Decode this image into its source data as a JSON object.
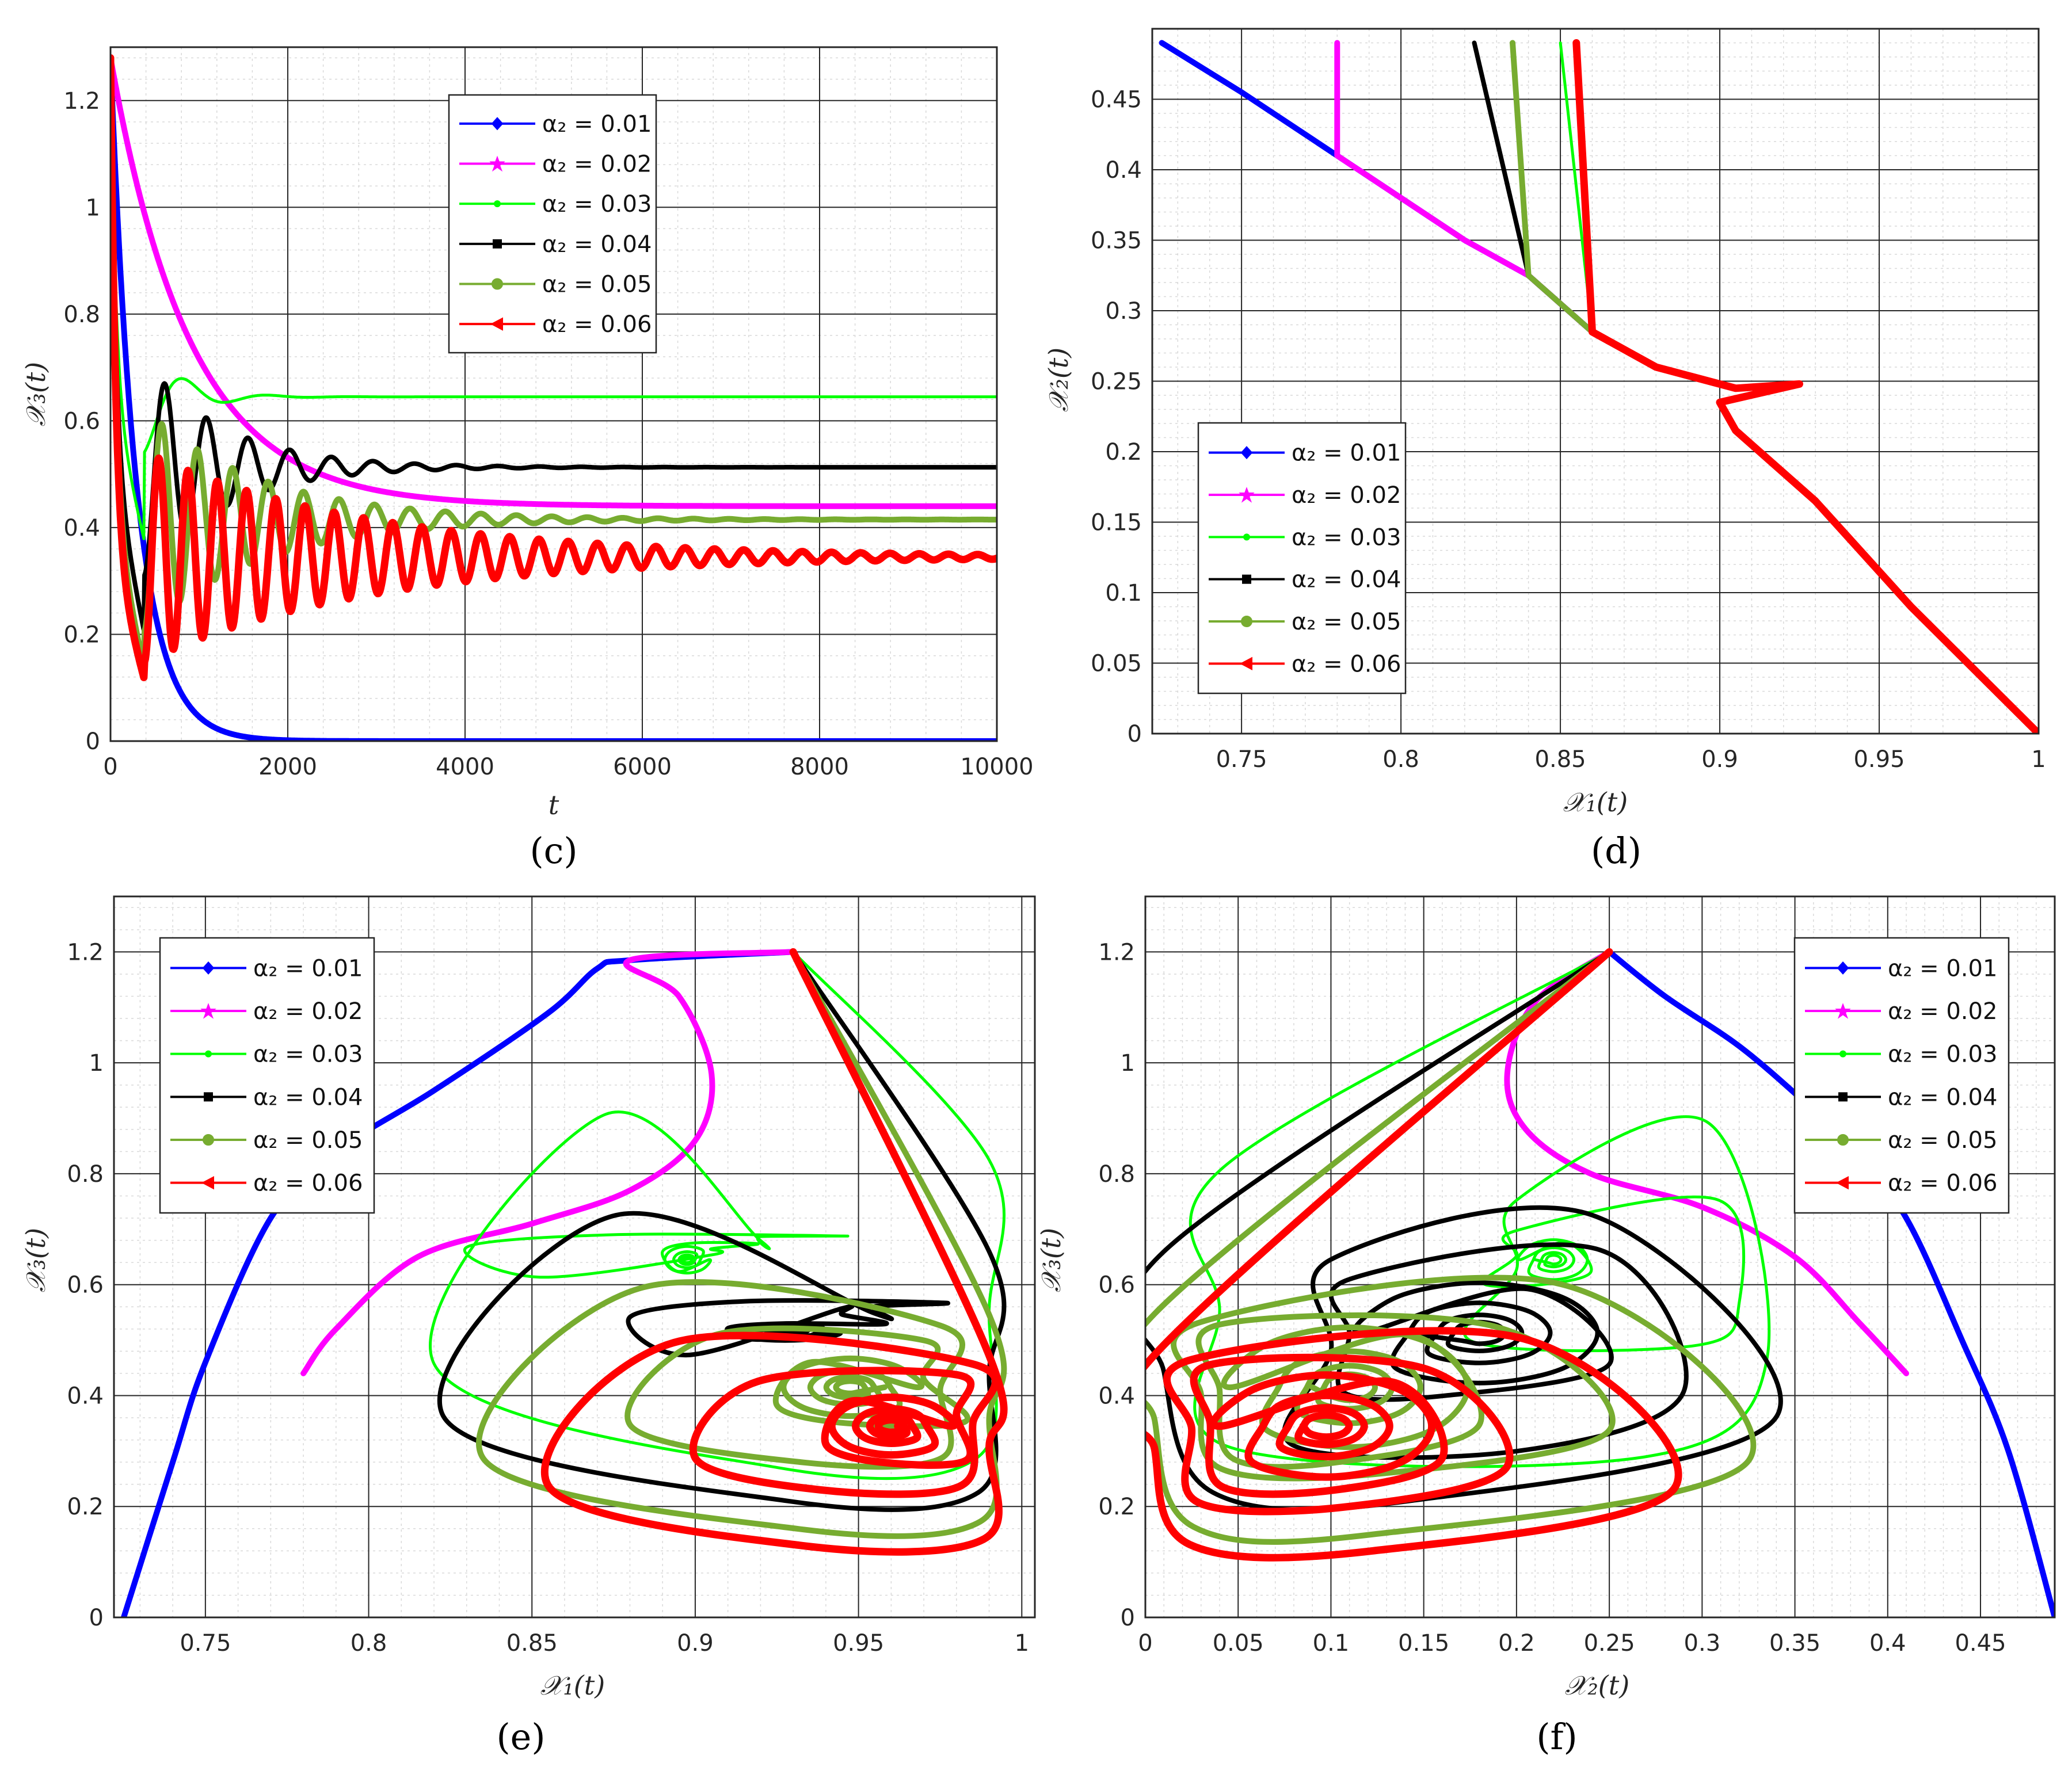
{
  "colors": {
    "a001": "#0000ff",
    "a002": "#ff00ff",
    "a003": "#00ff00",
    "a004": "#000000",
    "a005": "#77ac30",
    "a006": "#ff0000",
    "grid_major": "#262626",
    "grid_minor": "#d9d9d9"
  },
  "legend": [
    {
      "key": "a001",
      "label": "α₂ = 0.01"
    },
    {
      "key": "a002",
      "label": "α₂ = 0.02"
    },
    {
      "key": "a003",
      "label": "α₂ = 0.03"
    },
    {
      "key": "a004",
      "label": "α₂ = 0.04"
    },
    {
      "key": "a005",
      "label": "α₂ = 0.05"
    },
    {
      "key": "a006",
      "label": "α₂ = 0.06"
    }
  ],
  "chart_data": [
    {
      "id": "c",
      "panel_label": "(c)",
      "type": "line",
      "xlabel": "t",
      "ylabel": "𝒳₃(t)",
      "xlim": [
        0,
        10000
      ],
      "ylim": [
        0,
        1.3
      ],
      "xticks": [
        0,
        2000,
        4000,
        6000,
        8000,
        10000
      ],
      "xtick_labels": [
        "0",
        "2000",
        "4000",
        "6000",
        "8000",
        "10000"
      ],
      "yticks": [
        0,
        0.2,
        0.4,
        0.6,
        0.8,
        1,
        1.2
      ],
      "ytick_labels": [
        "0",
        "0.2",
        "0.4",
        "0.6",
        "0.8",
        "1",
        "1.2"
      ],
      "legend_position": "top-center",
      "series": [
        {
          "key": "a001",
          "name": "α₂ = 0.01",
          "kind": "decay",
          "start": 1.28,
          "end": 0.0,
          "tau": 300
        },
        {
          "key": "a002",
          "name": "α₂ = 0.02",
          "kind": "decay",
          "start": 1.28,
          "end": 0.44,
          "tau": 900
        },
        {
          "key": "a003",
          "name": "α₂ = 0.03",
          "kind": "osc",
          "start": 1.28,
          "end": 0.645,
          "amp": -0.27,
          "period": 950,
          "tau": 400
        },
        {
          "key": "a004",
          "name": "α₂ = 0.04",
          "kind": "osc",
          "start": 1.28,
          "end": 0.513,
          "amp": -0.31,
          "period": 470,
          "tau": 900
        },
        {
          "key": "a005",
          "name": "α₂ = 0.05",
          "kind": "osc",
          "start": 1.28,
          "end": 0.415,
          "amp": -0.28,
          "period": 400,
          "tau": 1300
        },
        {
          "key": "a006",
          "name": "α₂ = 0.06",
          "kind": "osc",
          "start": 1.28,
          "end": 0.345,
          "amp": -0.23,
          "period": 330,
          "tau": 2500
        }
      ]
    },
    {
      "id": "d",
      "panel_label": "(d)",
      "type": "line",
      "xlabel": "𝒳₁(t)",
      "ylabel": "𝒳₂(t)",
      "xlim": [
        0.722,
        1.0
      ],
      "ylim": [
        0,
        0.5
      ],
      "xticks": [
        0.75,
        0.8,
        0.85,
        0.9,
        0.95,
        1
      ],
      "xtick_labels": [
        "0.75",
        "0.8",
        "0.85",
        "0.9",
        "0.95",
        "1"
      ],
      "yticks": [
        0,
        0.05,
        0.1,
        0.15,
        0.2,
        0.25,
        0.3,
        0.35,
        0.4,
        0.45
      ],
      "ytick_labels": [
        "0",
        "0.05",
        "0.1",
        "0.15",
        "0.2",
        "0.25",
        "0.3",
        "0.35",
        "0.4",
        "0.45"
      ],
      "legend_position": "center-left",
      "series": [
        {
          "key": "a001",
          "name": "α₂ = 0.01",
          "kind": "phase12",
          "end": 0.725
        },
        {
          "key": "a002",
          "name": "α₂ = 0.02",
          "kind": "phase12",
          "end": 0.78
        },
        {
          "key": "a003",
          "name": "α₂ = 0.03",
          "kind": "phase12",
          "end": 0.85
        },
        {
          "key": "a004",
          "name": "α₂ = 0.04",
          "kind": "phase12",
          "end": 0.823
        },
        {
          "key": "a005",
          "name": "α₂ = 0.05",
          "kind": "phase12",
          "end": 0.835
        },
        {
          "key": "a006",
          "name": "α₂ = 0.06",
          "kind": "phase12",
          "end": 0.855
        }
      ]
    },
    {
      "id": "e",
      "panel_label": "(e)",
      "type": "line",
      "xlabel": "𝒳₁(t)",
      "ylabel": "𝒳₃(t)",
      "xlim": [
        0.722,
        1.004
      ],
      "ylim": [
        0,
        1.3
      ],
      "xticks": [
        0.75,
        0.8,
        0.85,
        0.9,
        0.95,
        1
      ],
      "xtick_labels": [
        "0.75",
        "0.8",
        "0.85",
        "0.9",
        "0.95",
        "1"
      ],
      "yticks": [
        0,
        0.2,
        0.4,
        0.6,
        0.8,
        1,
        1.2
      ],
      "ytick_labels": [
        "0",
        "0.2",
        "0.4",
        "0.6",
        "0.8",
        "1",
        "1.2"
      ],
      "legend_position": "top-left",
      "series": [
        {
          "key": "a001",
          "name": "α₂ = 0.01",
          "points": [
            [
              0.93,
              1.2
            ],
            [
              0.88,
              1.185
            ],
            [
              0.87,
              1.17
            ],
            [
              0.855,
              1.09
            ],
            [
              0.82,
              0.95
            ],
            [
              0.79,
              0.84
            ],
            [
              0.77,
              0.72
            ],
            [
              0.75,
              0.46
            ],
            [
              0.74,
              0.28
            ],
            [
              0.725,
              0.0
            ]
          ]
        },
        {
          "key": "a002",
          "name": "α₂ = 0.02",
          "points": [
            [
              0.93,
              1.2
            ],
            [
              0.88,
              1.185
            ],
            [
              0.895,
              1.12
            ],
            [
              0.905,
              0.98
            ],
            [
              0.9,
              0.86
            ],
            [
              0.88,
              0.77
            ],
            [
              0.85,
              0.71
            ],
            [
              0.815,
              0.65
            ],
            [
              0.79,
              0.52
            ],
            [
              0.78,
              0.44
            ]
          ]
        },
        {
          "key": "a003",
          "name": "α₂ = 0.03",
          "center": [
            0.895,
            0.645
          ],
          "start": [
            0.93,
            1.2
          ],
          "loops": [
            [
              0.99,
              0.82,
              0.995,
              0.27,
              0.62,
              0.4
            ],
            [
              0.92,
              0.83,
              0.95,
              0.69,
              0.5,
              0.35
            ],
            [
              0.905,
              0.89,
              0.92,
              0.675,
              0.63,
              0.65
            ]
          ]
        },
        {
          "key": "a004",
          "name": "α₂ = 0.04",
          "center": [
            0.932,
            0.513
          ],
          "start": [
            0.93,
            1.2
          ],
          "loops": [
            [
              0.99,
              0.823,
              0.995,
              0.21,
              0.63,
              0.3
            ],
            [
              0.955,
              0.88,
              0.98,
              0.57,
              0.47,
              0.4
            ],
            [
              0.945,
              0.91,
              0.96,
              0.53,
              0.49,
              0.45
            ]
          ]
        },
        {
          "key": "a005",
          "name": "α₂ = 0.05",
          "center": [
            0.958,
            0.415
          ],
          "start": [
            0.93,
            1.2
          ],
          "loops": [
            [
              0.99,
              0.835,
              0.995,
              0.16,
              0.62,
              0.2
            ],
            [
              0.975,
              0.88,
              0.98,
              0.28,
              0.55,
              0.35
            ],
            [
              0.97,
              0.925,
              0.985,
              0.35,
              0.48,
              0.45
            ]
          ]
        },
        {
          "key": "a006",
          "name": "α₂ = 0.06",
          "center": [
            0.962,
            0.345
          ],
          "start": [
            0.93,
            1.2
          ],
          "loops": [
            [
              0.99,
              0.855,
              0.995,
              0.13,
              0.57,
              0.15
            ],
            [
              0.985,
              0.9,
              0.985,
              0.23,
              0.45,
              0.3
            ],
            [
              0.98,
              0.94,
              0.985,
              0.28,
              0.42,
              0.4
            ]
          ]
        }
      ]
    },
    {
      "id": "f",
      "panel_label": "(f)",
      "type": "line",
      "xlabel": "𝒳₂(t)",
      "ylabel": "𝒳₃(t)",
      "xlim": [
        0,
        0.49
      ],
      "ylim": [
        0,
        1.3
      ],
      "xticks": [
        0,
        0.05,
        0.1,
        0.15,
        0.2,
        0.25,
        0.3,
        0.35,
        0.4,
        0.45
      ],
      "xtick_labels": [
        "0",
        "0.05",
        "0.1",
        "0.15",
        "0.2",
        "0.25",
        "0.3",
        "0.35",
        "0.4",
        "0.45"
      ],
      "yticks": [
        0,
        0.2,
        0.4,
        0.6,
        0.8,
        1,
        1.2
      ],
      "ytick_labels": [
        "0",
        "0.2",
        "0.4",
        "0.6",
        "0.8",
        "1",
        "1.2"
      ],
      "legend_position": "top-right",
      "series": [
        {
          "key": "a001",
          "name": "α₂ = 0.01",
          "points": [
            [
              0.25,
              1.2
            ],
            [
              0.28,
              1.12
            ],
            [
              0.32,
              1.03
            ],
            [
              0.355,
              0.93
            ],
            [
              0.38,
              0.85
            ],
            [
              0.41,
              0.72
            ],
            [
              0.44,
              0.5
            ],
            [
              0.465,
              0.3
            ],
            [
              0.49,
              0.0
            ]
          ]
        },
        {
          "key": "a002",
          "name": "α₂ = 0.02",
          "points": [
            [
              0.25,
              1.2
            ],
            [
              0.21,
              1.11
            ],
            [
              0.195,
              0.98
            ],
            [
              0.205,
              0.88
            ],
            [
              0.24,
              0.8
            ],
            [
              0.3,
              0.74
            ],
            [
              0.35,
              0.65
            ],
            [
              0.385,
              0.53
            ],
            [
              0.41,
              0.44
            ]
          ]
        },
        {
          "key": "a003",
          "name": "α₂ = 0.03",
          "center": [
            0.21,
            0.645
          ],
          "start": [
            0.25,
            1.2
          ],
          "loops": [
            [
              0.04,
              0.335,
              0.03,
              0.29,
              0.22,
              0.35
            ],
            [
              0.2,
              0.32,
              0.17,
              0.49,
              0.2,
              0.5
            ],
            [
              0.2,
              0.24,
              0.18,
              0.6,
              0.67,
              0.65
            ]
          ]
        },
        {
          "key": "a004",
          "name": "α₂ = 0.04",
          "center": [
            0.14,
            0.513
          ],
          "start": [
            0.25,
            1.2
          ],
          "loops": [
            [
              0.01,
              0.34,
              0.02,
              0.21,
              0.6,
              0.3
            ],
            [
              0.1,
              0.29,
              0.07,
              0.3,
              0.47,
              0.4
            ],
            [
              0.11,
              0.25,
              0.1,
              0.4,
              0.63,
              0.45
            ]
          ]
        },
        {
          "key": "a005",
          "name": "α₂ = 0.05",
          "center": [
            0.09,
            0.415
          ],
          "start": [
            0.25,
            1.2
          ],
          "loops": [
            [
              0.005,
              0.325,
              0.01,
              0.15,
              0.63,
              0.2
            ],
            [
              0.03,
              0.25,
              0.03,
              0.26,
              0.55,
              0.35
            ],
            [
              0.04,
              0.18,
              0.04,
              0.28,
              0.54,
              0.45
            ]
          ]
        },
        {
          "key": "a006",
          "name": "α₂ = 0.06",
          "center": [
            0.085,
            0.345
          ],
          "start": [
            0.25,
            1.2
          ],
          "loops": [
            [
              0.005,
              0.285,
              0.01,
              0.12,
              0.58,
              0.15
            ],
            [
              0.025,
              0.195,
              0.02,
              0.2,
              0.5,
              0.3
            ],
            [
              0.035,
              0.16,
              0.035,
              0.23,
              0.46,
              0.4
            ]
          ]
        }
      ]
    }
  ]
}
